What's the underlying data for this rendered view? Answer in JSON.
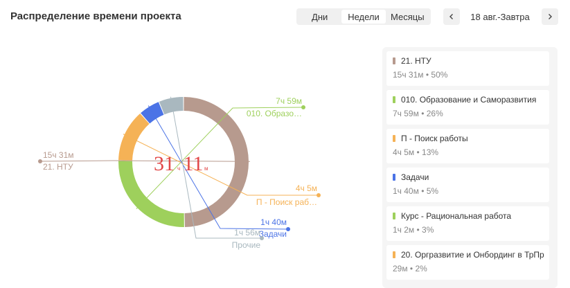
{
  "header": {
    "title": "Распределение времени проекта",
    "periods": [
      "Дни",
      "Недели",
      "Месяцы"
    ],
    "active_period": "Недели",
    "range_label": "18 авг.-Завтра",
    "prev_icon": "chevron-left-icon",
    "next_icon": "chevron-right-icon"
  },
  "chart_data": {
    "type": "pie",
    "center": {
      "hours": "31",
      "h_unit": "ч",
      "minutes": "11",
      "m_unit": "м"
    },
    "slices": [
      {
        "label": "21. НТУ",
        "value": "15ч 31м",
        "minutes": 931,
        "color": "#b79a8e"
      },
      {
        "label": "010. Образо…",
        "value": "7ч 59м",
        "minutes": 479,
        "color": "#9ed05c"
      },
      {
        "label": "П - Поиск раб…",
        "value": "4ч 5м",
        "minutes": 245,
        "color": "#f5b256"
      },
      {
        "label": "Задачи",
        "value": "1ч 40м",
        "minutes": 100,
        "color": "#4b73e6"
      },
      {
        "label": "Прочие",
        "value": "1ч 56м",
        "minutes": 116,
        "color": "#a9b8bf"
      }
    ]
  },
  "legend": [
    {
      "name": "21. НТУ",
      "meta": "15ч 31м • 50%",
      "color": "#b79a8e"
    },
    {
      "name": "010. Образование и Саморазвития",
      "meta": "7ч 59м • 26%",
      "color": "#9ed05c"
    },
    {
      "name": "П - Поиск работы",
      "meta": "4ч 5м • 13%",
      "color": "#f5b256"
    },
    {
      "name": "Задачи",
      "meta": "1ч 40м • 5%",
      "color": "#4b73e6"
    },
    {
      "name": "Курс - Рациональная работа",
      "meta": "1ч 2м • 3%",
      "color": "#9ed05c"
    },
    {
      "name": "20. Оргразвитие и Онбординг в ТрПр",
      "meta": "29м • 2%",
      "color": "#f5b256"
    }
  ]
}
